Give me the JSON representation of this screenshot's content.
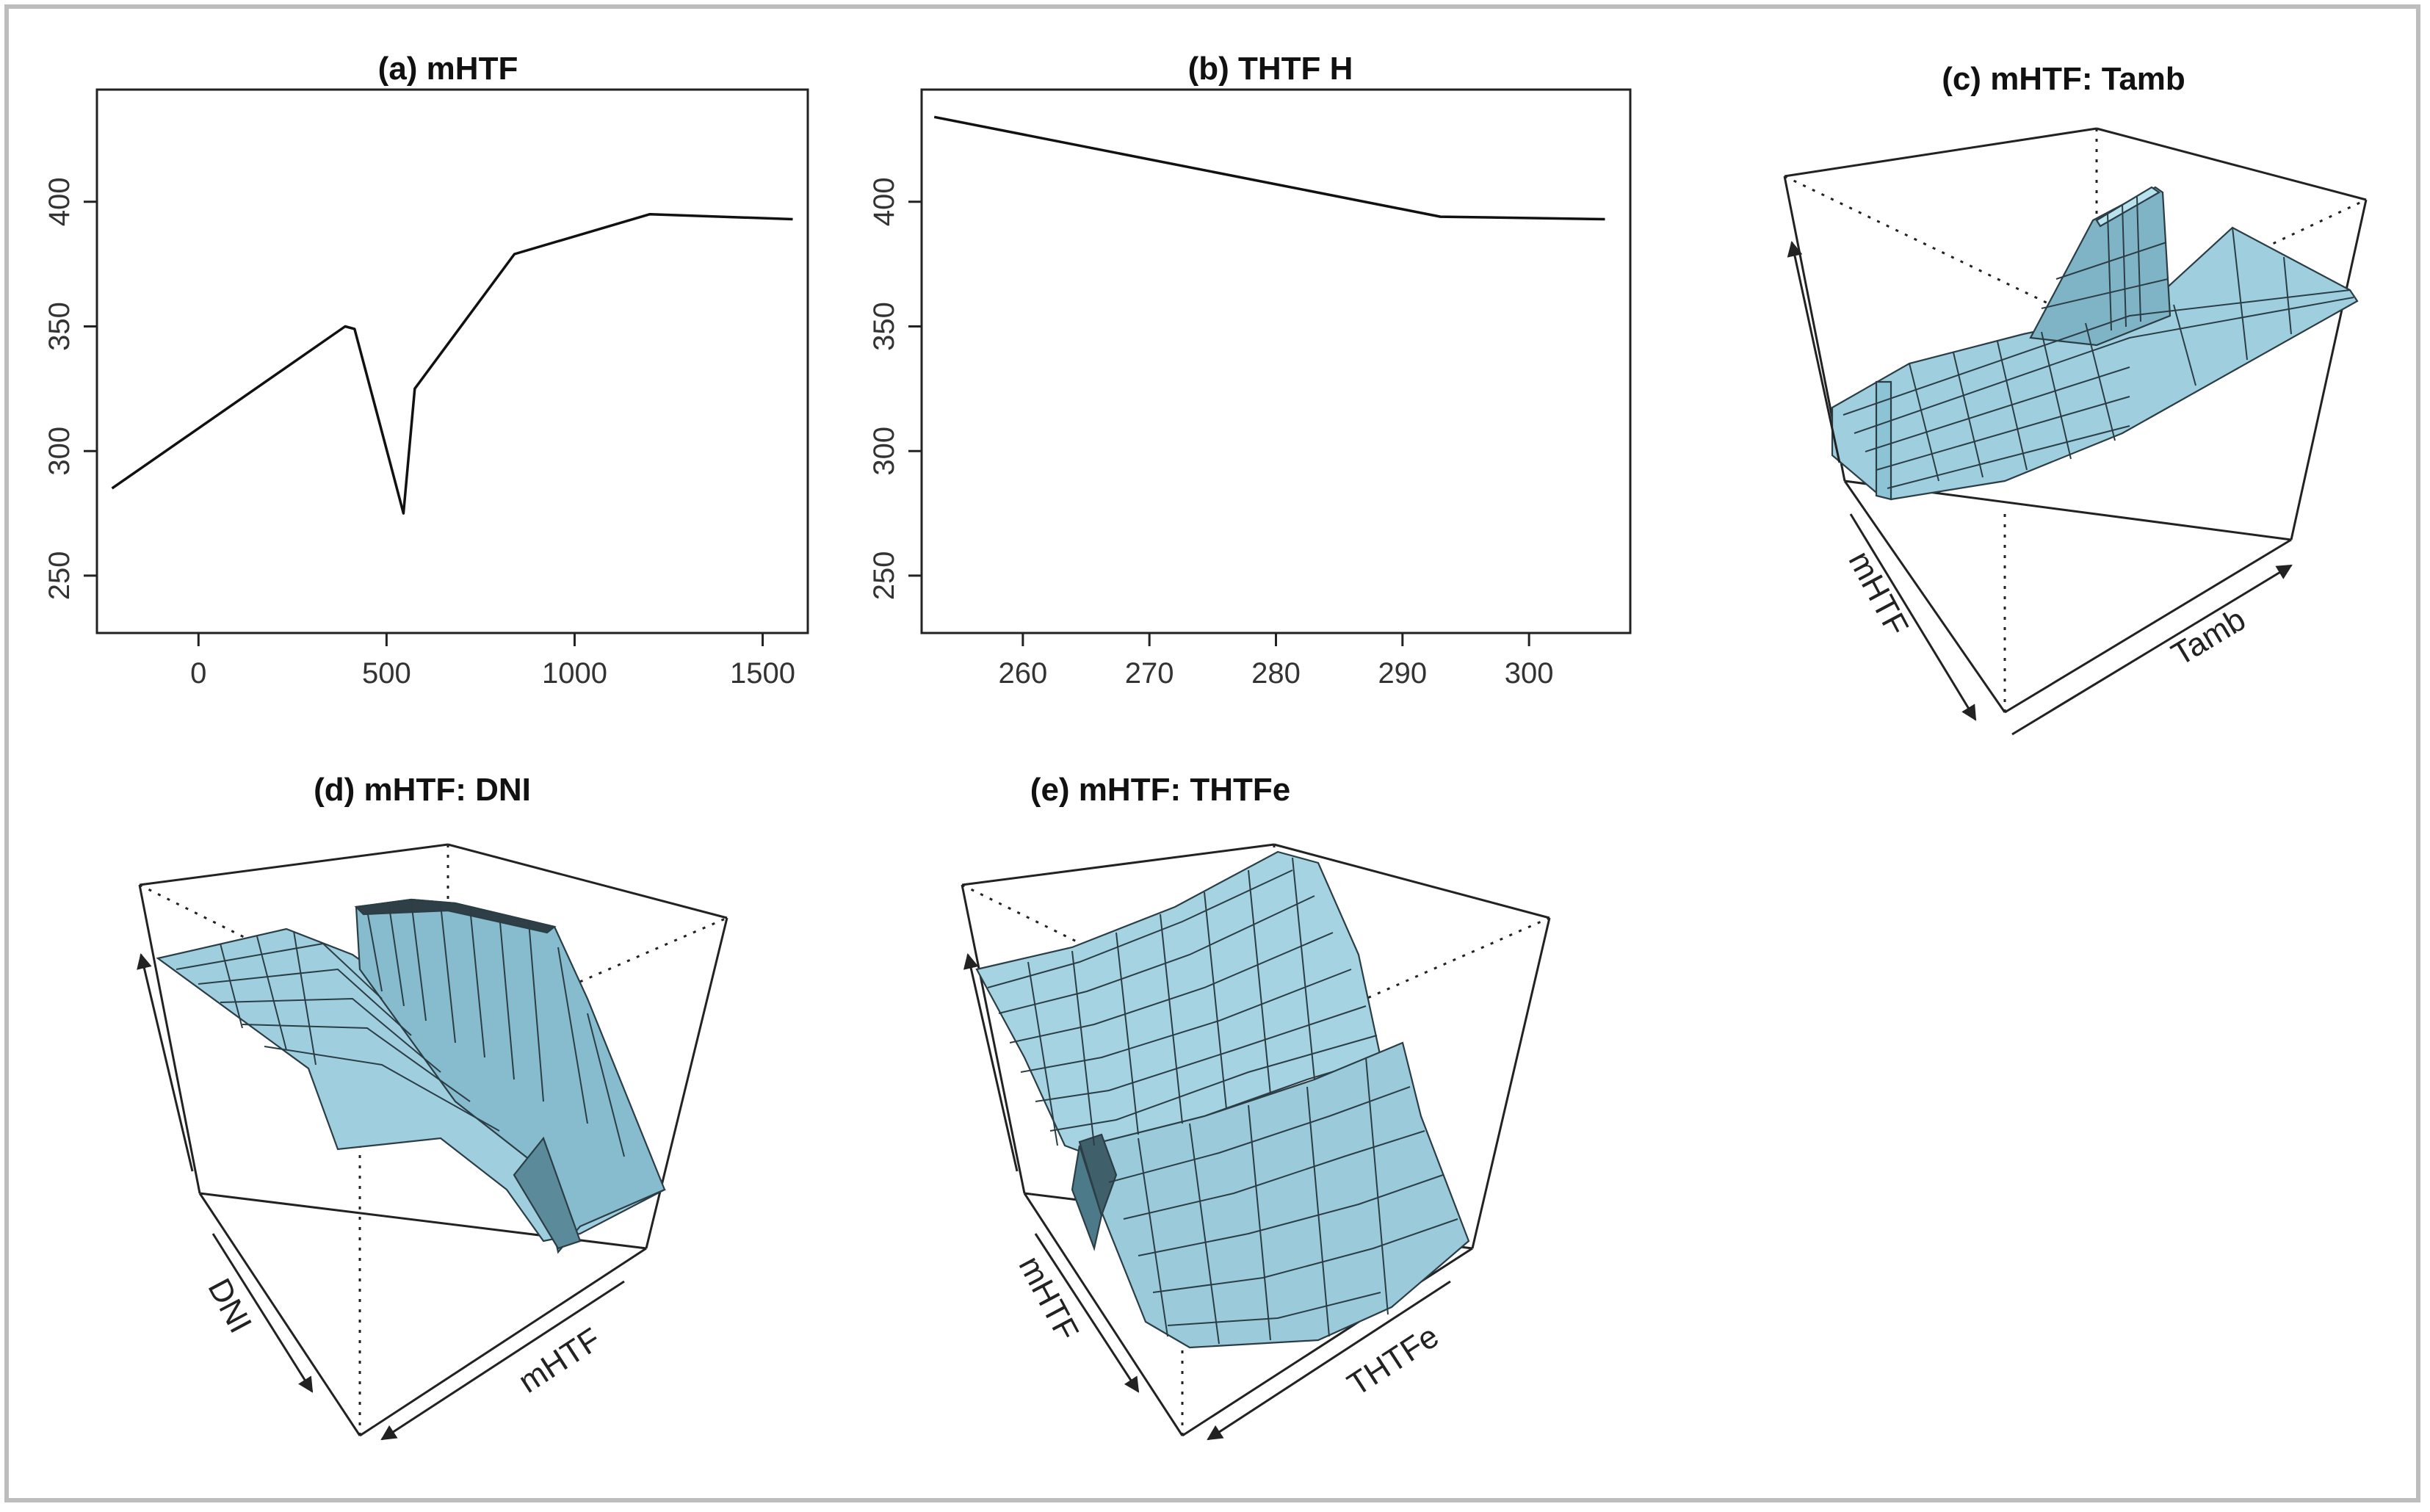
{
  "chart_data": [
    {
      "id": "a",
      "type": "line",
      "title": "(a) mHTF",
      "xlabel": "",
      "ylabel": "",
      "x": [
        -230,
        390,
        415,
        510,
        545,
        575,
        840,
        1200,
        1580
      ],
      "y": [
        285,
        350,
        349,
        295,
        275,
        325,
        379,
        395,
        393
      ],
      "xticks": [
        0,
        500,
        1000,
        1500
      ],
      "yticks": [
        250,
        300,
        350,
        400
      ],
      "xlim": [
        -270,
        1620
      ],
      "ylim": [
        227,
        445
      ],
      "grid": false
    },
    {
      "id": "b",
      "type": "line",
      "title": "(b) THTF H",
      "xlabel": "",
      "ylabel": "",
      "x": [
        253,
        293,
        306
      ],
      "y": [
        434,
        394,
        393
      ],
      "xticks": [
        260,
        270,
        280,
        290,
        300
      ],
      "yticks": [
        250,
        300,
        350,
        400
      ],
      "xlim": [
        252,
        308
      ],
      "ylim": [
        227,
        445
      ],
      "grid": false
    },
    {
      "id": "c",
      "type": "surface3d",
      "title": "(c) mHTF: Tamb",
      "xlabel": "Tamb",
      "ylabel": "mHTF",
      "zlabel": "",
      "surface_color": "#add8e6"
    },
    {
      "id": "d",
      "type": "surface3d",
      "title": "(d) mHTF: DNI",
      "xlabel": "mHTF",
      "ylabel": "DNI",
      "zlabel": "",
      "surface_color": "#add8e6"
    },
    {
      "id": "e",
      "type": "surface3d",
      "title": "(e) mHTF: THTFe",
      "xlabel": "THTFe",
      "ylabel": "mHTF",
      "zlabel": "",
      "surface_color": "#add8e6"
    }
  ]
}
